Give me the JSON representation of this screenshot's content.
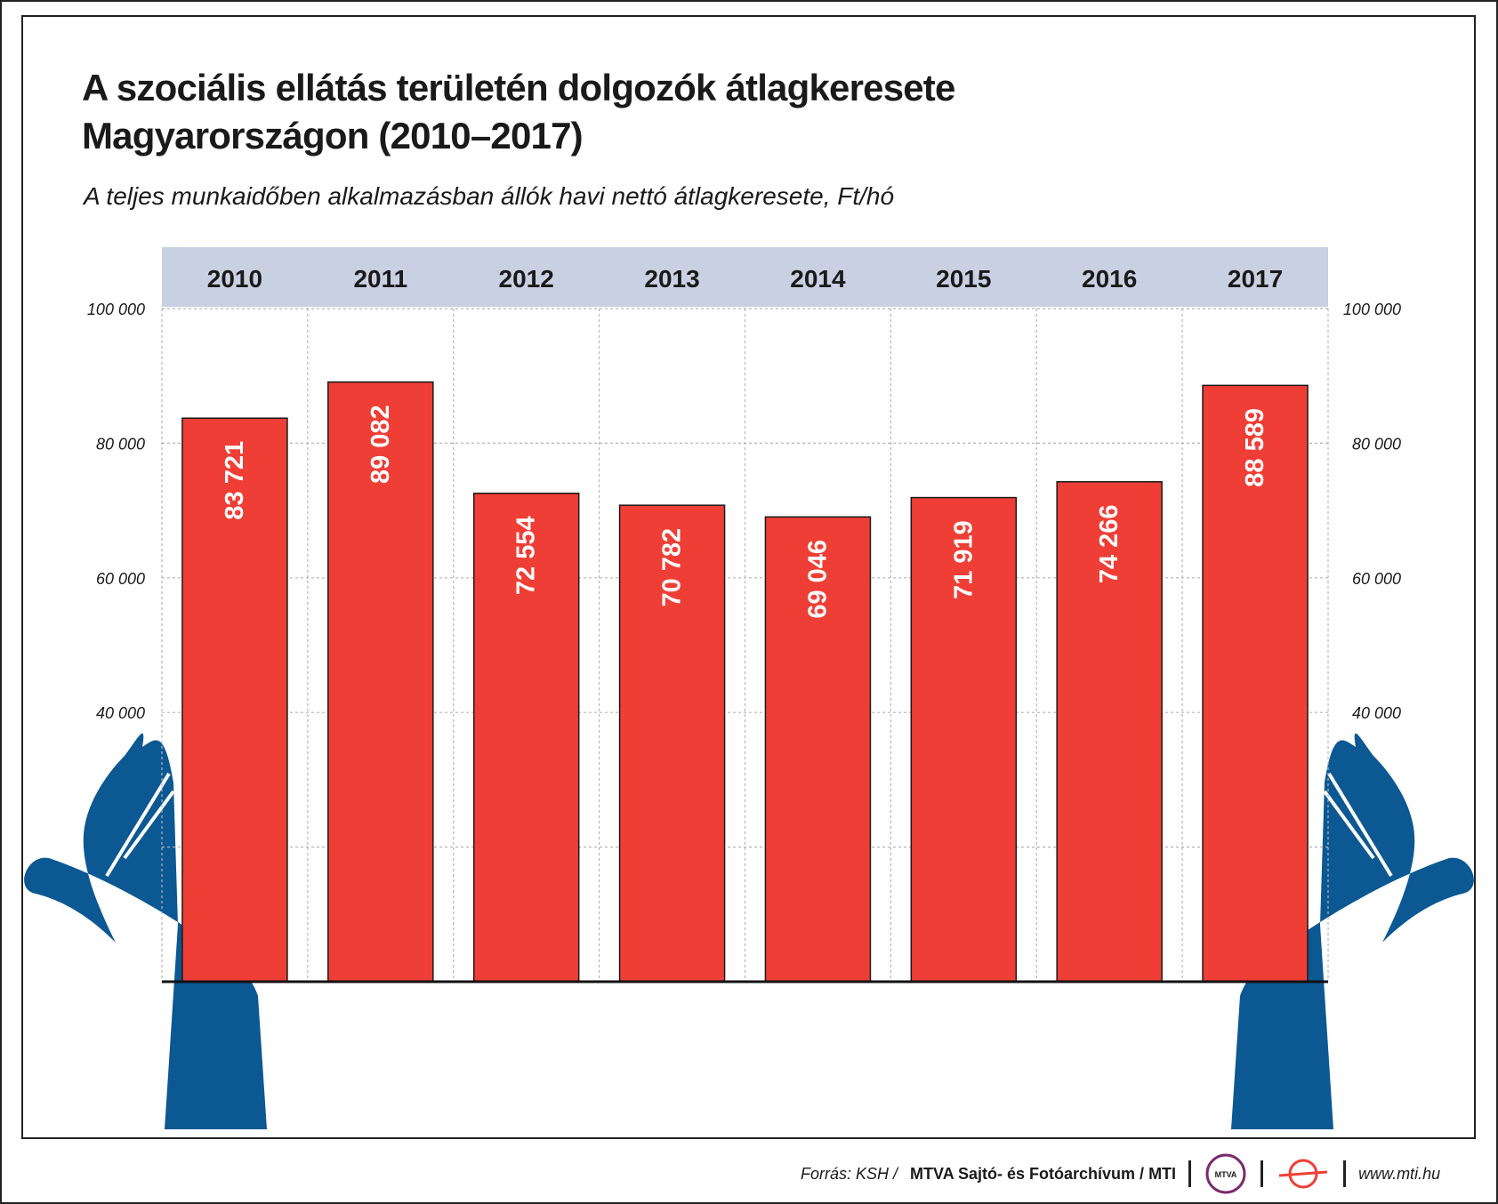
{
  "title_lines": [
    "A szociális ellátás területén dolgozók átlagkeresete",
    "Magyarországon (2010–2017)"
  ],
  "subtitle": "A teljes munkaidőben alkalmazásban állók havi nettó átlagkeresete, Ft/hó",
  "chart_data": {
    "type": "bar",
    "categories": [
      "2010",
      "2011",
      "2012",
      "2013",
      "2014",
      "2015",
      "2016",
      "2017"
    ],
    "values": [
      83721,
      89082,
      72554,
      70782,
      69046,
      71919,
      74266,
      88589
    ],
    "value_labels": [
      "83 721",
      "89 082",
      "72 554",
      "70 782",
      "69 046",
      "71 919",
      "74 266",
      "88 589"
    ],
    "y_ticks": [
      40000,
      60000,
      80000,
      100000
    ],
    "y_tick_labels": [
      "40 000",
      "60 000",
      "80 000",
      "100 000"
    ],
    "ylim": [
      0,
      100000
    ],
    "category_axis_position": "top",
    "y_axis_labels": "both sides",
    "grid": true,
    "bar_color": "#ee3e36",
    "header_color": "#c9d0e2",
    "decoration": "two blue hands holding the chart",
    "hand_color": "#0b5893"
  },
  "footer": {
    "source": "Forrás: KSH /",
    "organization": "MTVA Sajtó- és Fotóarchívum / MTI",
    "logo_text": "MTVA",
    "url": "www.mti.hu"
  }
}
